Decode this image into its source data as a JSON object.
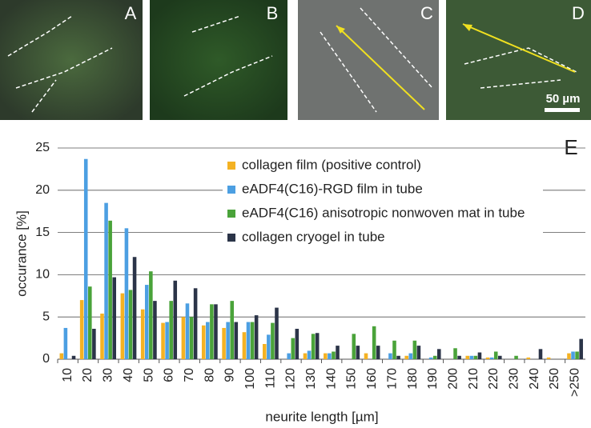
{
  "chart_data": {
    "type": "bar",
    "panel_labels": [
      "A",
      "B",
      "C",
      "D"
    ],
    "scale_bar": "50 µm",
    "chart_label": "E",
    "x_label": "neurite length [µm]",
    "y_label": "occurance [%]",
    "categories": [
      "10",
      "20",
      "30",
      "40",
      "50",
      "60",
      "70",
      "80",
      "90",
      "100",
      "110",
      "120",
      "130",
      "140",
      "150",
      "160",
      "170",
      "180",
      "190",
      "200",
      "210",
      "220",
      "230",
      "240",
      "250",
      ">250"
    ],
    "series": [
      {
        "name": "collagen film (positive control)",
        "color": "#f4b223",
        "values": [
          0.7,
          7.0,
          5.4,
          7.8,
          5.9,
          4.3,
          5.0,
          4.0,
          3.7,
          3.2,
          1.8,
          0,
          0.7,
          0.7,
          0,
          0.7,
          0,
          0.4,
          0,
          0,
          0.4,
          0.2,
          0,
          0.2,
          0.2,
          0.7
        ]
      },
      {
        "name": "eADF4(C16)-RGD film in tube",
        "color": "#4c9fe2",
        "values": [
          3.7,
          23.7,
          18.5,
          15.5,
          8.8,
          4.4,
          6.6,
          4.4,
          4.4,
          4.4,
          2.9,
          0.7,
          1.0,
          0.7,
          0,
          0,
          0.7,
          0.7,
          0.2,
          0,
          0.4,
          0.2,
          0,
          0,
          0,
          0.9
        ]
      },
      {
        "name": "eADF4(C16) anisotropic nonwoven mat in tube",
        "color": "#4aa33a",
        "values": [
          0,
          8.6,
          16.4,
          8.2,
          10.4,
          6.9,
          5.0,
          6.5,
          6.9,
          4.4,
          4.3,
          2.5,
          3.0,
          0.9,
          3.0,
          3.9,
          2.2,
          2.2,
          0.4,
          1.3,
          0.4,
          0.9,
          0.4,
          0,
          0,
          0.9
        ]
      },
      {
        "name": "collagen cryogel in tube",
        "color": "#2b3448",
        "values": [
          0.4,
          3.6,
          9.7,
          12.1,
          6.9,
          9.3,
          8.4,
          6.5,
          4.4,
          5.2,
          6.1,
          3.6,
          3.1,
          1.6,
          1.6,
          1.6,
          0.4,
          1.6,
          1.2,
          0.4,
          0.8,
          0.4,
          0,
          1.2,
          0,
          2.4
        ]
      }
    ],
    "ylim": [
      0,
      25
    ],
    "yticks": [
      0,
      5,
      10,
      15,
      20,
      25
    ],
    "grid": true
  }
}
